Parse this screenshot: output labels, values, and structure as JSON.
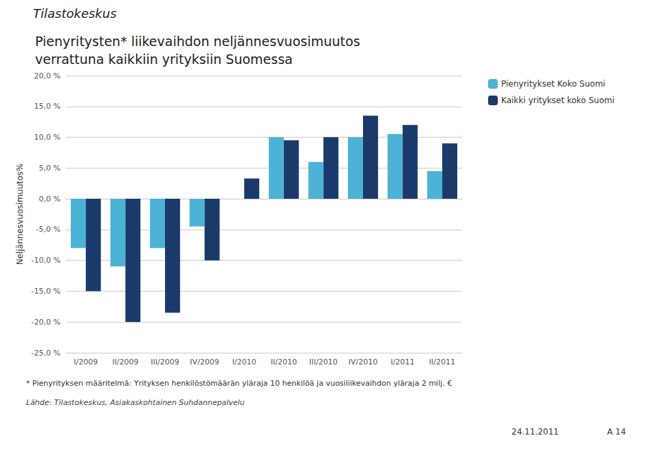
{
  "chart_data": {
    "type": "bar",
    "title": "Pienyritysten* liikevaihdon neljännesvuosimuutos\nverrattuna kaikkiin yrityksiin Suomessa",
    "ylabel": "Neljännesvuosimuutos%",
    "categories": [
      "I/2009",
      "II/2009",
      "III/2009",
      "IV/2009",
      "I/2010",
      "II/2010",
      "III/2010",
      "IV/2010",
      "I/2011",
      "II/2011"
    ],
    "series": [
      {
        "name": "Pienyritykset Koko Suomi",
        "color": "#4db3d6",
        "values": [
          -8.0,
          -11.0,
          -8.0,
          -4.5,
          0.0,
          10.0,
          6.0,
          10.0,
          10.5,
          4.5
        ]
      },
      {
        "name": "Kaikki yritykset koko Suomi",
        "color": "#1a3a6b",
        "values": [
          -15.0,
          -20.0,
          -18.5,
          -10.0,
          3.3,
          9.5,
          10.0,
          13.5,
          12.0,
          9.0
        ]
      }
    ],
    "ylim": [
      -25.0,
      20.0
    ],
    "yticks": [
      {
        "value": -25.0,
        "label": "-25,0 %"
      },
      {
        "value": -20.0,
        "label": "-20,0 %"
      },
      {
        "value": -15.0,
        "label": "-15,0 %"
      },
      {
        "value": -10.0,
        "label": "-10,0 %"
      },
      {
        "value": -5.0,
        "label": "-5,0 %"
      },
      {
        "value": 0.0,
        "label": "0,0 %"
      },
      {
        "value": 5.0,
        "label": "5,0 %"
      },
      {
        "value": 10.0,
        "label": "10,0 %"
      },
      {
        "value": 15.0,
        "label": "15,0 %"
      },
      {
        "value": 20.0,
        "label": "20,0 %"
      }
    ],
    "grid": true,
    "legend": "right",
    "annotations": [
      "* Pienyrityksen määritelmä: Yrityksen henkilöstömäärän yläraja 10 henkilöä ja vuosiliikevaihdon yläraja 2 milj. €",
      "Lähde: Tilastokeskus, Asiakaskohtainen Suhdannepalvelu",
      "24.11.2011",
      "A 14",
      "Tilastokeskus"
    ]
  }
}
